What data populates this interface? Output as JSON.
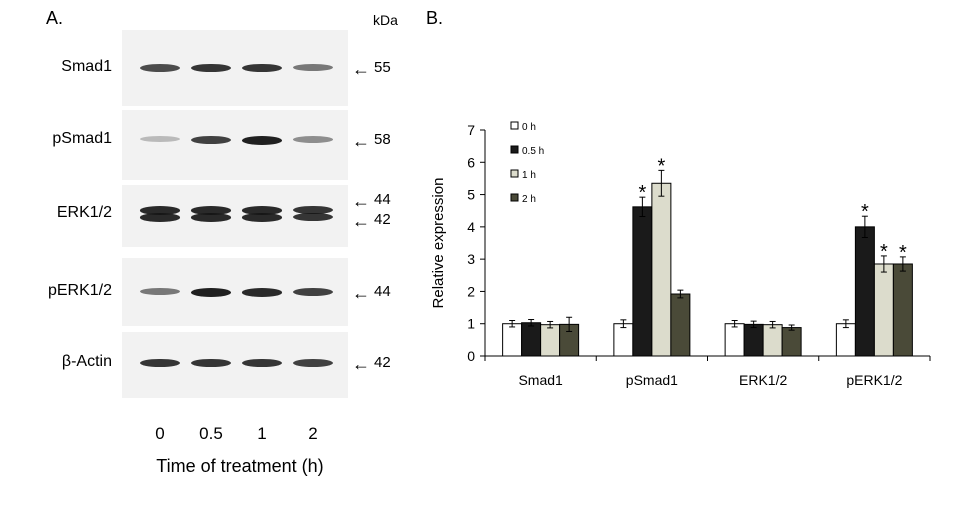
{
  "panelA": {
    "label": "A.",
    "unit_label": "kDa",
    "blots": [
      {
        "name": "Smad1",
        "mw": [
          "55"
        ],
        "intensity": [
          0.75,
          0.85,
          0.85,
          0.55
        ]
      },
      {
        "name": "pSmad1",
        "mw": [
          "58"
        ],
        "intensity": [
          0.25,
          0.8,
          0.95,
          0.45
        ]
      },
      {
        "name": "ERK1/2",
        "mw": [
          "44",
          "42"
        ],
        "intensity": [
          0.9,
          0.9,
          0.9,
          0.85
        ]
      },
      {
        "name": "pERK1/2",
        "mw": [
          "44"
        ],
        "intensity": [
          0.55,
          0.95,
          0.9,
          0.8
        ]
      },
      {
        "name": "β-Actin",
        "mw": [
          "42"
        ],
        "intensity": [
          0.85,
          0.85,
          0.85,
          0.8
        ]
      }
    ],
    "lanes": [
      "0",
      "0.5",
      "1",
      "2"
    ],
    "xlabel": "Time of treatment (h)"
  },
  "panelB": {
    "label": "B."
  },
  "chart_data": {
    "type": "bar",
    "categories": [
      "Smad1",
      "pSmad1",
      "ERK1/2",
      "pERK1/2"
    ],
    "series": [
      {
        "name": "0 h",
        "values": [
          1.0,
          1.0,
          1.0,
          1.0
        ],
        "errors": [
          0.1,
          0.12,
          0.1,
          0.12
        ],
        "color": "#ffffff"
      },
      {
        "name": "0.5 h",
        "values": [
          1.03,
          4.62,
          0.98,
          4.0
        ],
        "errors": [
          0.1,
          0.3,
          0.1,
          0.33
        ],
        "color": "#1a1a1a"
      },
      {
        "name": "1 h",
        "values": [
          0.97,
          5.35,
          0.97,
          2.85
        ],
        "errors": [
          0.1,
          0.4,
          0.1,
          0.25
        ],
        "color": "#dcdccc"
      },
      {
        "name": "2 h",
        "values": [
          0.98,
          1.92,
          0.88,
          2.85
        ],
        "errors": [
          0.22,
          0.12,
          0.08,
          0.22
        ],
        "color": "#4a4a38"
      }
    ],
    "significance": [
      {
        "category": 1,
        "series": 1,
        "mark": "*"
      },
      {
        "category": 1,
        "series": 2,
        "mark": "*"
      },
      {
        "category": 3,
        "series": 1,
        "mark": "*"
      },
      {
        "category": 3,
        "series": 2,
        "mark": "*"
      },
      {
        "category": 3,
        "series": 3,
        "mark": "*"
      }
    ],
    "ylabel": "Relative expression",
    "xlabel": "",
    "ylim": [
      0,
      7
    ],
    "yticks": [
      0,
      1,
      2,
      3,
      4,
      5,
      6,
      7
    ],
    "legend_position": "top-left",
    "grid": false
  }
}
